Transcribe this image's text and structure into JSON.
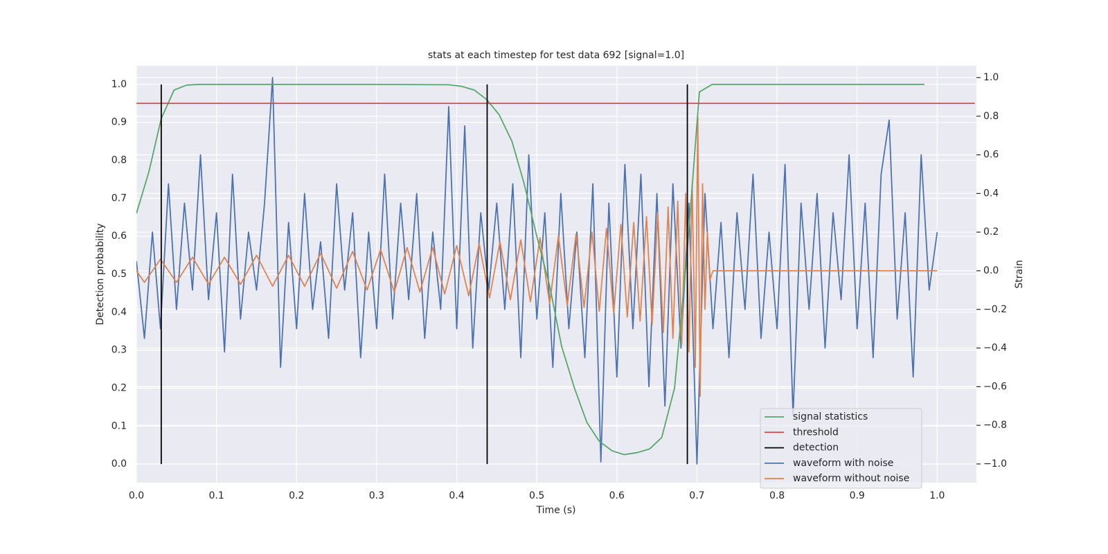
{
  "chart_data": {
    "type": "line",
    "title": "stats at each timestep for test data 692 [signal=1.0]",
    "x_label": "Time (s)",
    "y_label": "Detection probability",
    "y2_label": "Strain",
    "xlim": [
      0,
      1.049
    ],
    "ylim": [
      -0.049,
      1.049
    ],
    "y2lim": [
      -1.097,
      1.061
    ],
    "xticks": [
      {
        "value": 0,
        "label": "0.0"
      },
      0.1,
      0.2,
      0.3,
      0.4,
      0.5,
      0.6,
      0.7,
      0.8,
      0.9,
      {
        "value": 1,
        "label": "1.0"
      }
    ],
    "yticks": [
      {
        "value": 0,
        "label": "0.0"
      },
      0.1,
      0.2,
      0.3,
      0.4,
      0.5,
      0.6,
      0.7,
      0.8,
      0.9,
      {
        "value": 1,
        "label": "1.0"
      }
    ],
    "y2ticks": [
      {
        "value": -1,
        "label": "−1.0"
      },
      {
        "value": -0.8,
        "label": "−0.8"
      },
      {
        "value": -0.6,
        "label": "−0.6"
      },
      {
        "value": -0.4,
        "label": "−0.4"
      },
      {
        "value": -0.2,
        "label": "−0.2"
      },
      {
        "value": 0,
        "label": "0.0"
      },
      0.2,
      0.4,
      0.6,
      0.8,
      {
        "value": 1,
        "label": "1.0"
      }
    ],
    "grid": true,
    "legend": "lower right",
    "series": [
      {
        "name": "signal statistics",
        "color": "#55a868",
        "axis": "y",
        "x": [
          0,
          0.0156,
          0.031,
          0.047,
          0.0625,
          0.078,
          0.1,
          0.2,
          0.3,
          0.39,
          0.406,
          0.422,
          0.4375,
          0.453,
          0.469,
          0.484,
          0.5,
          0.516,
          0.531,
          0.547,
          0.5625,
          0.578,
          0.594,
          0.609,
          0.625,
          0.641,
          0.656,
          0.672,
          0.6875,
          0.703,
          0.719,
          0.8,
          0.9,
          0.984
        ],
        "values": [
          0.66,
          0.77,
          0.91,
          0.985,
          0.998,
          1.0,
          1.0,
          1.0,
          1.0,
          0.999,
          0.995,
          0.985,
          0.96,
          0.92,
          0.85,
          0.74,
          0.6,
          0.47,
          0.31,
          0.2,
          0.11,
          0.06,
          0.035,
          0.025,
          0.03,
          0.04,
          0.07,
          0.2,
          0.55,
          0.98,
          1.0,
          1.0,
          1.0,
          1.0
        ]
      },
      {
        "name": "threshold",
        "color": "#c44e52",
        "axis": "y",
        "x": [
          0,
          1.047
        ],
        "values": [
          0.95,
          0.95
        ]
      },
      {
        "name": "detection",
        "color": "#000000",
        "axis": "y",
        "style": "vlines",
        "x": [
          0.031,
          0.438,
          0.688
        ],
        "values": [
          1,
          1,
          1
        ]
      },
      {
        "name": "waveform with noise",
        "color": "#4c72b0",
        "axis": "y2",
        "x": [
          0,
          0.01,
          0.02,
          0.03,
          0.04,
          0.05,
          0.06,
          0.07,
          0.08,
          0.09,
          0.1,
          0.11,
          0.12,
          0.13,
          0.14,
          0.15,
          0.16,
          0.17,
          0.18,
          0.19,
          0.2,
          0.21,
          0.22,
          0.23,
          0.24,
          0.25,
          0.26,
          0.27,
          0.28,
          0.29,
          0.3,
          0.31,
          0.32,
          0.33,
          0.34,
          0.35,
          0.36,
          0.37,
          0.38,
          0.39,
          0.4,
          0.41,
          0.42,
          0.43,
          0.44,
          0.45,
          0.46,
          0.47,
          0.48,
          0.49,
          0.5,
          0.51,
          0.52,
          0.53,
          0.54,
          0.55,
          0.56,
          0.57,
          0.58,
          0.59,
          0.6,
          0.61,
          0.62,
          0.63,
          0.64,
          0.65,
          0.66,
          0.67,
          0.68,
          0.69,
          0.7,
          0.71,
          0.72,
          0.73,
          0.74,
          0.75,
          0.76,
          0.77,
          0.78,
          0.79,
          0.8,
          0.81,
          0.82,
          0.83,
          0.84,
          0.85,
          0.86,
          0.87,
          0.88,
          0.89,
          0.9,
          0.91,
          0.92,
          0.93,
          0.94,
          0.95,
          0.96,
          0.97,
          0.98,
          0.99,
          1.0
        ],
        "values": [
          0.05,
          -0.35,
          0.2,
          -0.3,
          0.45,
          -0.2,
          0.35,
          -0.1,
          0.6,
          -0.15,
          0.3,
          -0.42,
          0.5,
          -0.25,
          0.2,
          -0.1,
          0.35,
          1.0,
          -0.5,
          0.25,
          -0.3,
          0.4,
          -0.2,
          0.15,
          -0.35,
          0.45,
          -0.1,
          0.3,
          -0.45,
          0.2,
          -0.3,
          0.5,
          -0.25,
          0.35,
          -0.15,
          0.4,
          -0.35,
          0.2,
          -0.2,
          0.85,
          -0.3,
          0.75,
          -0.4,
          0.3,
          -0.1,
          0.35,
          -0.2,
          0.45,
          -0.45,
          0.6,
          -0.25,
          0.3,
          -0.5,
          0.4,
          -0.3,
          0.2,
          -0.45,
          0.45,
          -0.99,
          0.35,
          -0.55,
          0.55,
          -0.3,
          0.5,
          -0.6,
          0.4,
          -0.7,
          0.45,
          -0.4,
          0.35,
          -1.0,
          0.4,
          -0.3,
          0.25,
          -0.45,
          0.3,
          -0.2,
          0.5,
          -0.35,
          0.2,
          -0.3,
          0.55,
          -0.75,
          0.35,
          -0.2,
          0.4,
          -0.4,
          0.3,
          -0.15,
          0.6,
          -0.3,
          0.35,
          -0.45,
          0.5,
          0.78,
          -0.25,
          0.3,
          -0.55,
          0.6,
          -0.1,
          0.2
        ]
      },
      {
        "name": "waveform without noise",
        "color": "#dd8452",
        "axis": "y2",
        "x": [
          0,
          0.01,
          0.03,
          0.05,
          0.07,
          0.09,
          0.11,
          0.13,
          0.15,
          0.17,
          0.19,
          0.21,
          0.23,
          0.25,
          0.27,
          0.288,
          0.305,
          0.322,
          0.338,
          0.354,
          0.37,
          0.385,
          0.4,
          0.415,
          0.428,
          0.441,
          0.454,
          0.467,
          0.48,
          0.492,
          0.504,
          0.516,
          0.527,
          0.538,
          0.549,
          0.559,
          0.569,
          0.578,
          0.587,
          0.596,
          0.605,
          0.613,
          0.621,
          0.629,
          0.637,
          0.644,
          0.651,
          0.658,
          0.664,
          0.67,
          0.676,
          0.681,
          0.686,
          0.69,
          0.694,
          0.698,
          0.701,
          0.704,
          0.707,
          0.71,
          0.713,
          0.716,
          0.72,
          1.0
        ],
        "values": [
          0,
          -0.06,
          0.06,
          -0.06,
          0.07,
          -0.07,
          0.07,
          -0.07,
          0.08,
          -0.08,
          0.08,
          -0.08,
          0.09,
          -0.09,
          0.1,
          -0.1,
          0.11,
          -0.11,
          0.12,
          -0.11,
          0.12,
          -0.12,
          0.13,
          -0.13,
          0.14,
          -0.14,
          0.15,
          -0.15,
          0.16,
          -0.16,
          0.17,
          -0.17,
          0.18,
          -0.18,
          0.19,
          -0.19,
          0.2,
          -0.21,
          0.22,
          -0.22,
          0.24,
          -0.24,
          0.25,
          -0.26,
          0.28,
          -0.28,
          0.3,
          -0.32,
          0.33,
          -0.35,
          0.36,
          -0.38,
          0.4,
          -0.42,
          0.45,
          -0.5,
          0.8,
          -0.65,
          0.45,
          -0.2,
          0.2,
          -0.05,
          0,
          0
        ]
      }
    ]
  }
}
